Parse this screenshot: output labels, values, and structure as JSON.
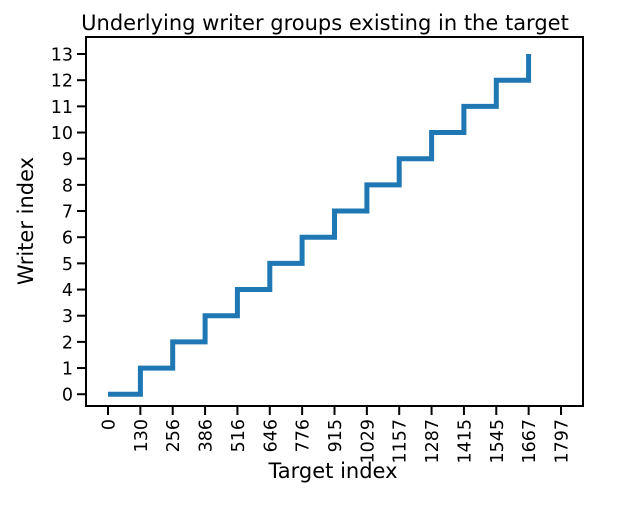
{
  "chart_data": {
    "type": "line",
    "step": true,
    "title": "Underlying writer groups existing in the target",
    "xlabel": "Target index",
    "ylabel": "Writer index",
    "x_tick_labels": [
      "0",
      "130",
      "256",
      "386",
      "516",
      "646",
      "776",
      "915",
      "1029",
      "1157",
      "1287",
      "1415",
      "1545",
      "1667",
      "1797"
    ],
    "y_tick_labels": [
      "0",
      "1",
      "2",
      "3",
      "4",
      "5",
      "6",
      "7",
      "8",
      "9",
      "10",
      "11",
      "12",
      "13"
    ],
    "ylim": [
      -0.45,
      13.65
    ],
    "grid": false,
    "series": [
      {
        "color": "#1f77b4",
        "values": [
          0,
          1,
          2,
          3,
          4,
          5,
          6,
          7,
          8,
          9,
          10,
          11,
          12,
          13
        ]
      }
    ]
  }
}
